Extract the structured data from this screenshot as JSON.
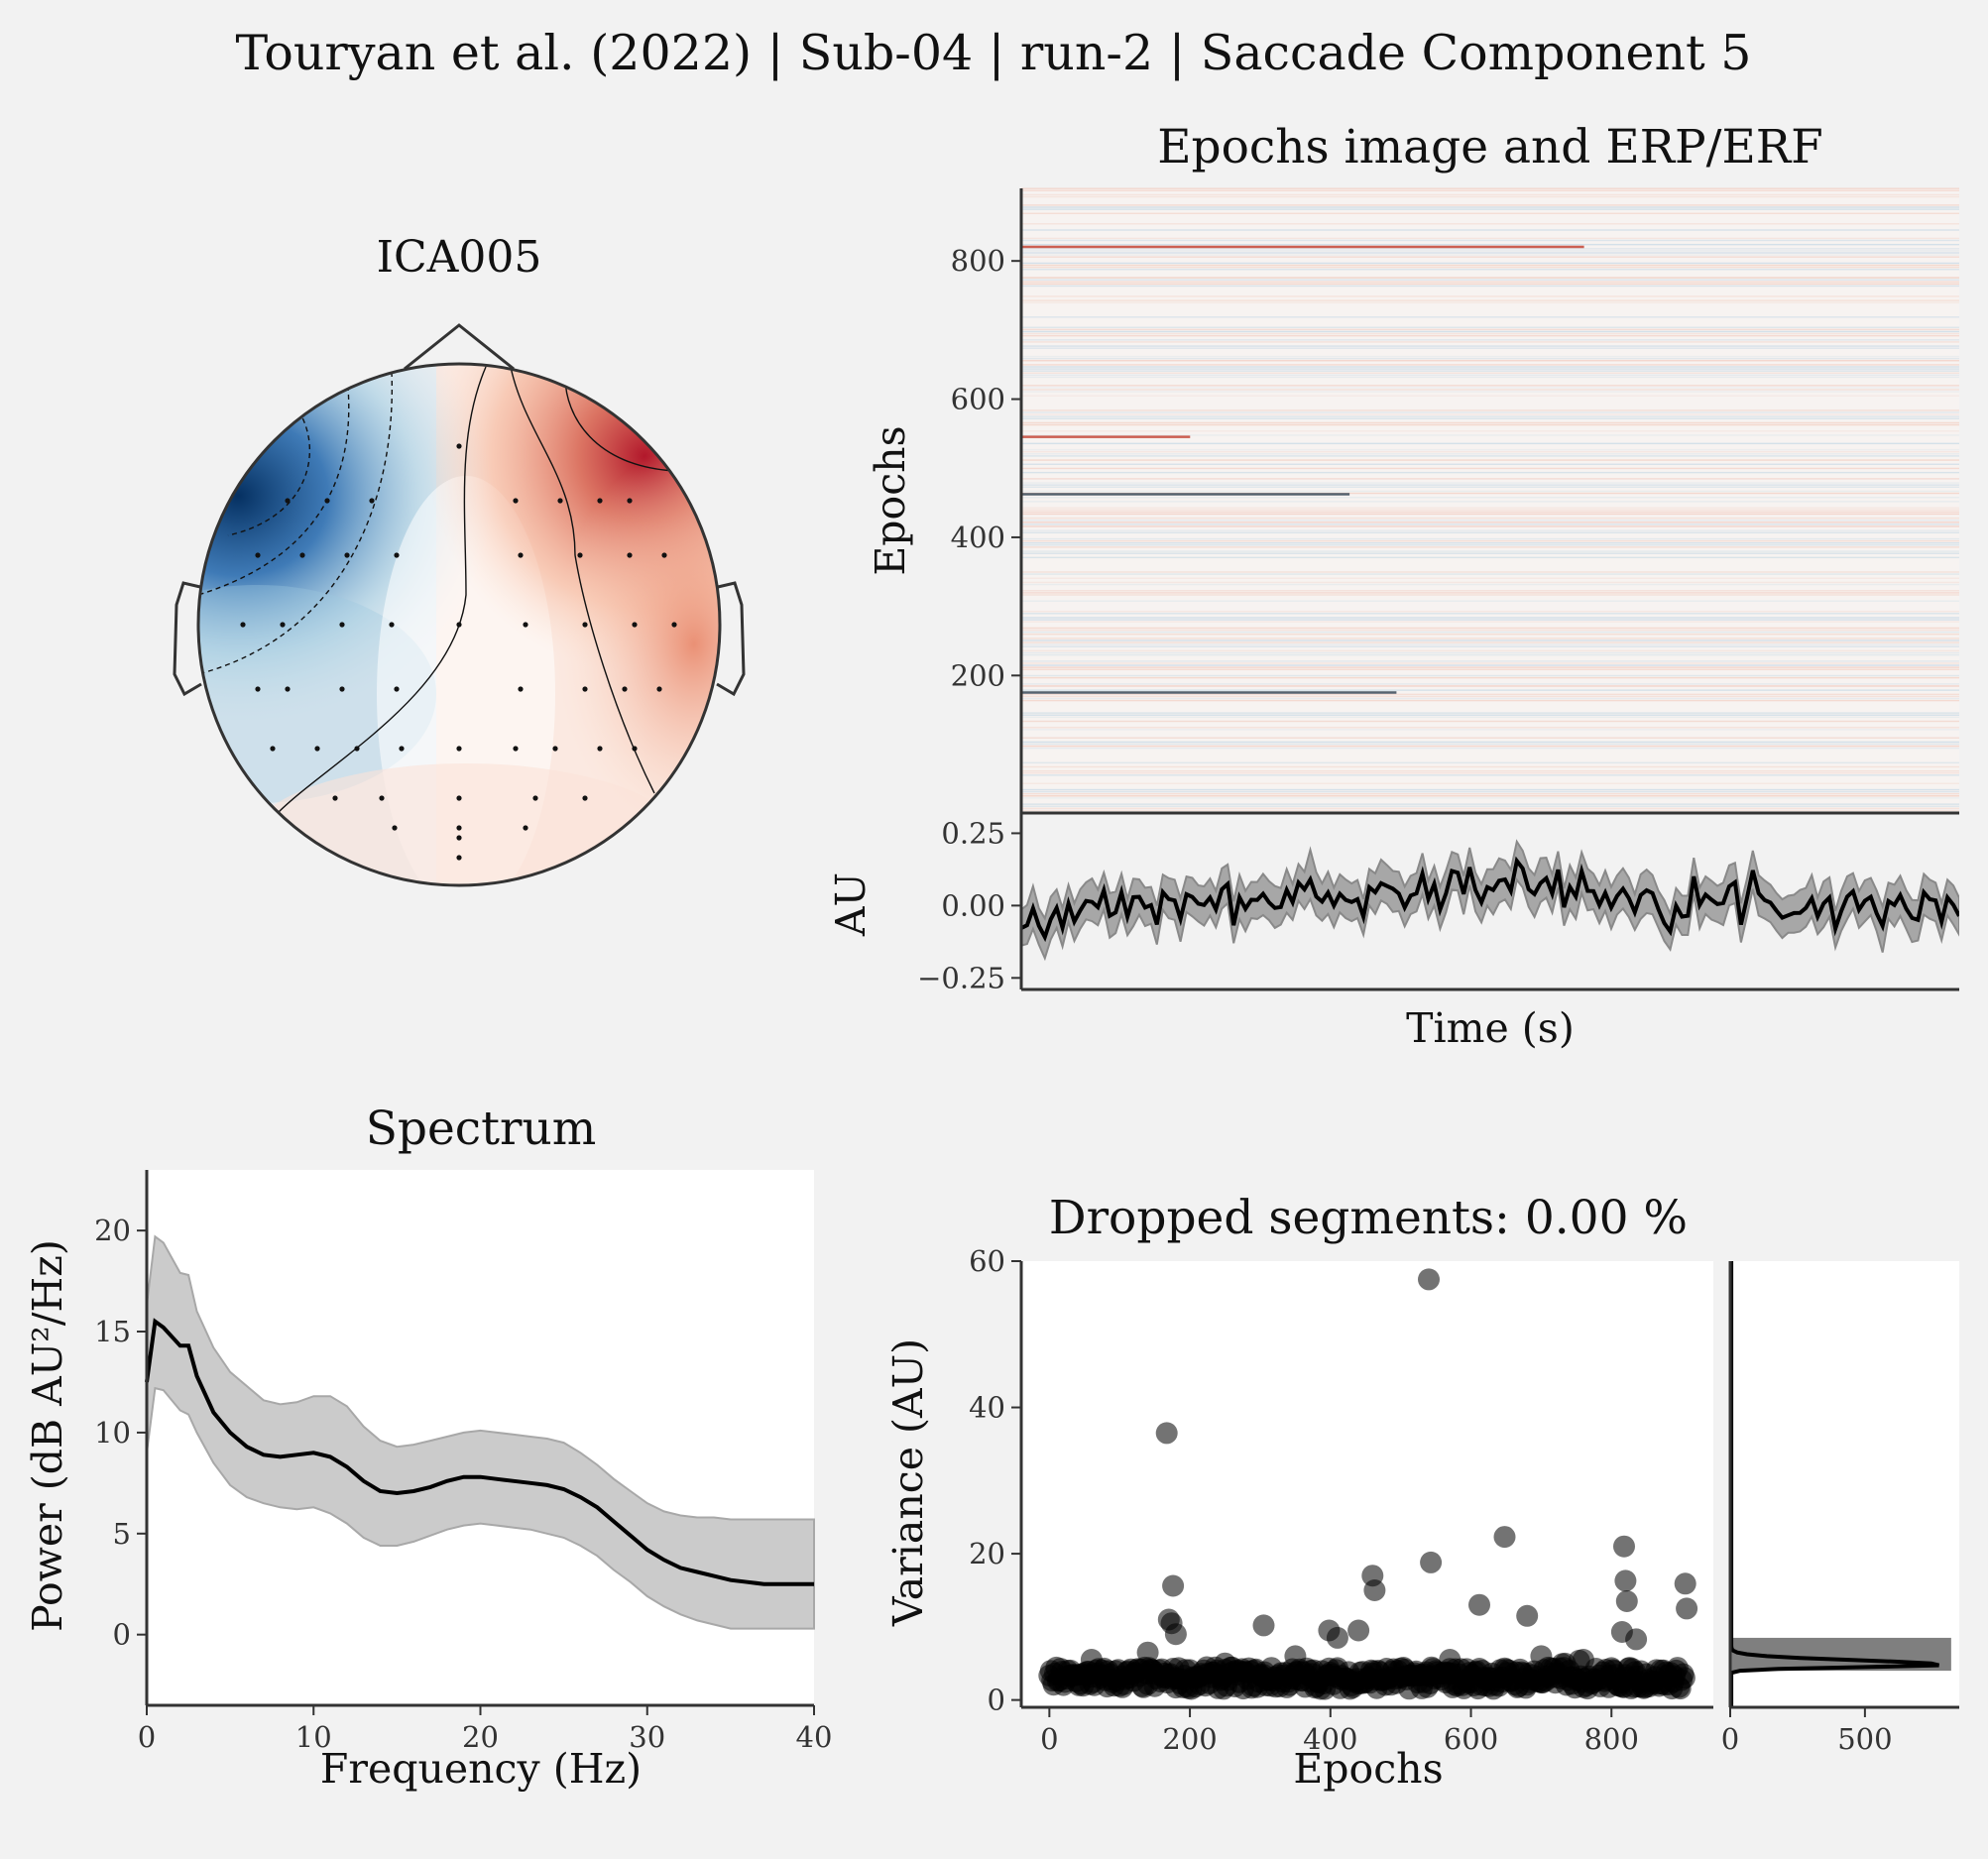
{
  "figure": {
    "suptitle": "Touryan et al. (2022) | Sub-04 | run-2 | Saccade Component 5"
  },
  "colors": {
    "background": "#f2f2f2",
    "negative": "#053061",
    "positive": "#b2182b",
    "trace": "#000000",
    "band": "#c8c8c8",
    "scatter": "#000000",
    "hist_bar": "#7f7f7f"
  },
  "chart_data": [
    {
      "id": "topomap",
      "type": "heatmap",
      "title": "ICA005",
      "description_values": {
        "min_region": "left-frontal",
        "max_region": "right-frontal",
        "colormap": "RdBu_r"
      }
    },
    {
      "id": "epochs_image",
      "type": "heatmap",
      "title": "Epochs image and ERP/ERF",
      "ylabel": "Epochs",
      "yticks": [
        200,
        400,
        600,
        800
      ],
      "ylim": [
        1,
        905
      ],
      "strong_rows": [
        {
          "epoch": 545,
          "polarity": "positive",
          "extent": 0.18
        },
        {
          "epoch": 462,
          "polarity": "negative",
          "extent": 0.35
        },
        {
          "epoch": 820,
          "polarity": "positive",
          "extent": 0.6
        },
        {
          "epoch": 175,
          "polarity": "negative",
          "extent": 0.4
        }
      ]
    },
    {
      "id": "erp",
      "type": "line",
      "ylabel": "AU",
      "xlabel": "Time (s)",
      "yticks": [
        0.25,
        0.0,
        -0.25
      ],
      "ytick_labels": [
        "0.25",
        "0.00",
        "−0.25"
      ],
      "ylim": [
        -0.29,
        0.32
      ],
      "n_samples": 160,
      "series_shape": "noisy around zero, slight positive hump mid-window",
      "band_halfwidth": 0.06
    },
    {
      "id": "spectrum",
      "type": "area",
      "title": "Spectrum",
      "xlabel": "Frequency (Hz)",
      "ylabel": "Power (dB AU²/Hz)",
      "xlim": [
        0,
        40
      ],
      "ylim": [
        -3.5,
        23
      ],
      "xticks": [
        0,
        10,
        20,
        30,
        40
      ],
      "yticks": [
        0,
        5,
        10,
        15,
        20
      ],
      "x": [
        0,
        0.5,
        1,
        2,
        2.5,
        3,
        4,
        5,
        6,
        7,
        8,
        9,
        10,
        11,
        12,
        13,
        14,
        15,
        16,
        17,
        18,
        19,
        20,
        21,
        22,
        23,
        24,
        25,
        26,
        27,
        28,
        29,
        30,
        31,
        32,
        33,
        34,
        35,
        36,
        37,
        38,
        39,
        40
      ],
      "mean": [
        12.5,
        15.5,
        15.2,
        14.3,
        14.3,
        12.8,
        11.0,
        10.0,
        9.3,
        8.9,
        8.8,
        8.9,
        9.0,
        8.8,
        8.3,
        7.6,
        7.1,
        7.0,
        7.1,
        7.3,
        7.6,
        7.8,
        7.8,
        7.7,
        7.6,
        7.5,
        7.4,
        7.2,
        6.8,
        6.3,
        5.6,
        4.9,
        4.2,
        3.7,
        3.3,
        3.1,
        2.9,
        2.7,
        2.6,
        2.5,
        2.5,
        2.5,
        2.5
      ],
      "upper": [
        16.3,
        19.7,
        19.4,
        17.9,
        17.8,
        16.0,
        14.2,
        13.0,
        12.3,
        11.6,
        11.4,
        11.5,
        11.8,
        11.8,
        11.3,
        10.3,
        9.6,
        9.3,
        9.4,
        9.6,
        9.8,
        10.0,
        10.1,
        10.0,
        9.9,
        9.8,
        9.7,
        9.5,
        9.0,
        8.4,
        7.7,
        7.1,
        6.5,
        6.1,
        5.9,
        5.8,
        5.8,
        5.7,
        5.7,
        5.7,
        5.7,
        5.7,
        5.7
      ],
      "lower": [
        9.0,
        12.2,
        12.1,
        11.1,
        10.9,
        10.0,
        8.5,
        7.4,
        6.8,
        6.5,
        6.3,
        6.2,
        6.3,
        6.0,
        5.5,
        4.8,
        4.4,
        4.4,
        4.6,
        4.9,
        5.2,
        5.4,
        5.5,
        5.4,
        5.3,
        5.2,
        5.0,
        4.8,
        4.4,
        3.9,
        3.2,
        2.6,
        1.9,
        1.4,
        1.0,
        0.7,
        0.5,
        0.3,
        0.3,
        0.3,
        0.3,
        0.3,
        0.3
      ]
    },
    {
      "id": "variance",
      "type": "scatter",
      "title": "Dropped segments: 0.00 %",
      "xlabel": "Epochs",
      "ylabel": "Variance (AU)",
      "xlim": [
        -40,
        945
      ],
      "ylim": [
        -1,
        60
      ],
      "xticks": [
        0,
        200,
        400,
        600,
        800
      ],
      "yticks": [
        0,
        20,
        40,
        60
      ],
      "n_epochs": 905,
      "baseline_range": [
        1.5,
        4.5
      ],
      "outliers": [
        [
          167,
          36.5
        ],
        [
          176,
          15.6
        ],
        [
          170,
          11.0
        ],
        [
          174,
          10.5
        ],
        [
          180,
          9.0
        ],
        [
          140,
          6.5
        ],
        [
          305,
          10.2
        ],
        [
          398,
          9.5
        ],
        [
          410,
          8.5
        ],
        [
          440,
          9.5
        ],
        [
          460,
          17.0
        ],
        [
          463,
          15.0
        ],
        [
          540,
          57.5
        ],
        [
          543,
          18.8
        ],
        [
          648,
          22.3
        ],
        [
          612,
          13.0
        ],
        [
          680,
          11.5
        ],
        [
          818,
          21.0
        ],
        [
          820,
          16.3
        ],
        [
          822,
          13.5
        ],
        [
          815,
          9.3
        ],
        [
          835,
          8.3
        ],
        [
          905,
          15.9
        ],
        [
          907,
          12.5
        ],
        [
          60,
          5.5
        ],
        [
          250,
          5.0
        ],
        [
          350,
          6.0
        ],
        [
          570,
          5.5
        ],
        [
          700,
          6.0
        ],
        [
          760,
          5.5
        ]
      ]
    },
    {
      "id": "variance_hist",
      "type": "bar",
      "xticks": [
        0,
        500
      ],
      "xlim": [
        0,
        850
      ],
      "bar": {
        "from": 4.0,
        "to": 8.5,
        "count": 820
      },
      "density_peak": {
        "at": 4.8,
        "value": 780
      }
    }
  ]
}
